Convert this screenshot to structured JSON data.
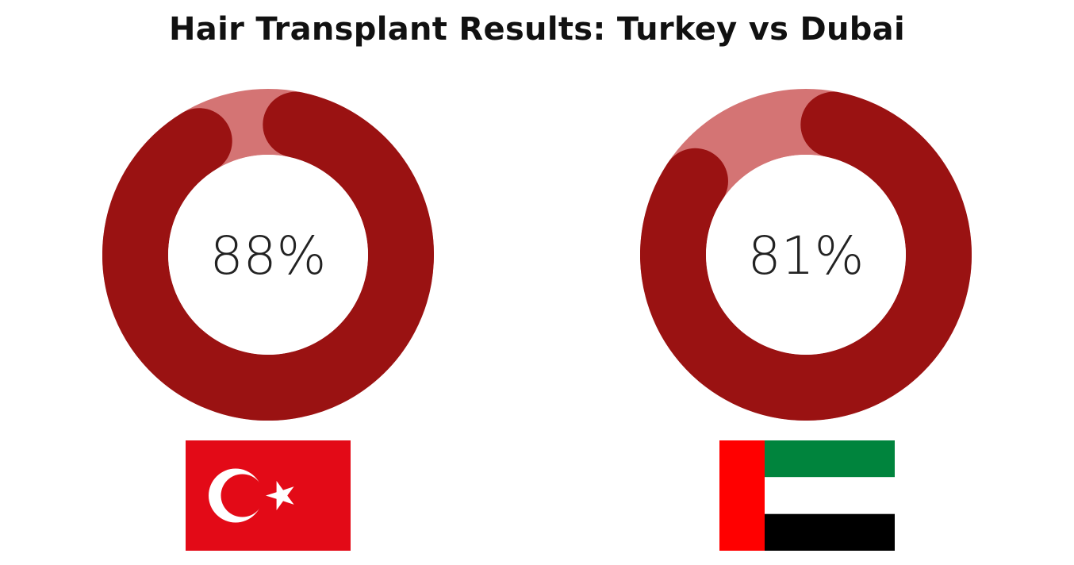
{
  "chart_data": {
    "type": "pie",
    "title": "Hair Transplant Results: Turkey vs Dubai",
    "series": [
      {
        "value": 88,
        "label": "88%",
        "flag": "turkey-flag"
      },
      {
        "value": 81,
        "label": "81%",
        "flag": "uae-flag"
      }
    ],
    "max": 100,
    "colors": {
      "filled": "#9a1212",
      "track": "#d47474",
      "inner": "#ffffff",
      "label": "#222222"
    }
  },
  "flags": {
    "turkey": {
      "name": "turkey-flag",
      "red": "#e30a17",
      "white": "#ffffff"
    },
    "uae": {
      "name": "uae-flag",
      "red": "#ff0000",
      "green": "#00843d",
      "white": "#ffffff",
      "black": "#000000"
    }
  }
}
